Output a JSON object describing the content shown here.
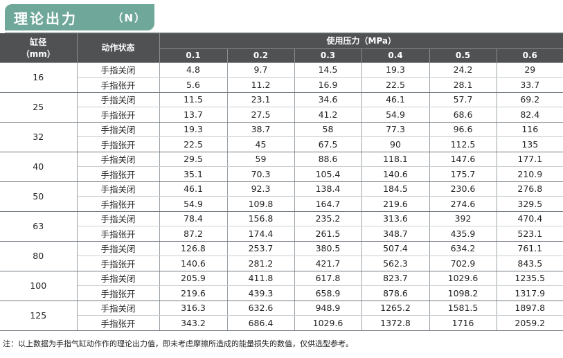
{
  "title": {
    "main": "理论出力",
    "unit": "（N）"
  },
  "table": {
    "bore_header": "缸径",
    "bore_unit": "（mm）",
    "action_header": "动作状态",
    "pressure_header": "使用压力（MPa）",
    "pressures": [
      "0.1",
      "0.2",
      "0.3",
      "0.4",
      "0.5",
      "0.6"
    ],
    "close_label": "手指关闭",
    "open_label": "手指张开",
    "rows": [
      {
        "bore": "16",
        "close": [
          "4.8",
          "9.7",
          "14.5",
          "19.3",
          "24.2",
          "29"
        ],
        "open": [
          "5.6",
          "11.2",
          "16.9",
          "22.5",
          "28.1",
          "33.7"
        ]
      },
      {
        "bore": "25",
        "close": [
          "11.5",
          "23.1",
          "34.6",
          "46.1",
          "57.7",
          "69.2"
        ],
        "open": [
          "13.7",
          "27.5",
          "41.2",
          "54.9",
          "68.6",
          "82.4"
        ]
      },
      {
        "bore": "32",
        "close": [
          "19.3",
          "38.7",
          "58",
          "77.3",
          "96.6",
          "116"
        ],
        "open": [
          "22.5",
          "45",
          "67.5",
          "90",
          "112.5",
          "135"
        ]
      },
      {
        "bore": "40",
        "close": [
          "29.5",
          "59",
          "88.6",
          "118.1",
          "147.6",
          "177.1"
        ],
        "open": [
          "35.1",
          "70.3",
          "105.4",
          "140.6",
          "175.7",
          "210.9"
        ]
      },
      {
        "bore": "50",
        "close": [
          "46.1",
          "92.3",
          "138.4",
          "184.5",
          "230.6",
          "276.8"
        ],
        "open": [
          "54.9",
          "109.8",
          "164.7",
          "219.6",
          "274.6",
          "329.5"
        ]
      },
      {
        "bore": "63",
        "close": [
          "78.4",
          "156.8",
          "235.2",
          "313.6",
          "392",
          "470.4"
        ],
        "open": [
          "87.2",
          "174.4",
          "261.5",
          "348.7",
          "435.9",
          "523.1"
        ]
      },
      {
        "bore": "80",
        "close": [
          "126.8",
          "253.7",
          "380.5",
          "507.4",
          "634.2",
          "761.1"
        ],
        "open": [
          "140.6",
          "281.2",
          "421.7",
          "562.3",
          "702.9",
          "843.5"
        ]
      },
      {
        "bore": "100",
        "close": [
          "205.9",
          "411.8",
          "617.8",
          "823.7",
          "1029.6",
          "1235.5"
        ],
        "open": [
          "219.6",
          "439.3",
          "658.9",
          "878.6",
          "1098.2",
          "1317.9"
        ]
      },
      {
        "bore": "125",
        "close": [
          "316.3",
          "632.6",
          "948.9",
          "1265.2",
          "1581.5",
          "1897.8"
        ],
        "open": [
          "343.2",
          "686.4",
          "1029.6",
          "1372.8",
          "1716",
          "2059.2"
        ]
      }
    ]
  },
  "note": "注：以上数据为手指气缸动作作的理论出力值，即未考虑摩擦所造成的能量损失的数值，仅供选型参考。",
  "colors": {
    "title_bg": "#6fa89a",
    "header_bg": "#4f5152"
  }
}
